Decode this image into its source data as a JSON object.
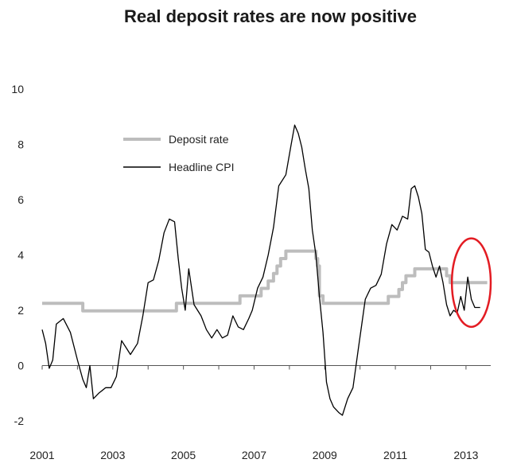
{
  "chart_data": {
    "type": "line",
    "title": "Real deposit rates are now positive",
    "xlabel": "",
    "ylabel": "",
    "xlim": [
      2001.0,
      2013.7
    ],
    "ylim": [
      -2.5,
      10.5
    ],
    "y_ticks": [
      -2,
      0,
      2,
      4,
      6,
      8,
      10
    ],
    "x_ticks": [
      2001,
      2003,
      2005,
      2007,
      2009,
      2011,
      2013
    ],
    "x_tick_labels": [
      "2001",
      "2003",
      "2005",
      "2007",
      "2009",
      "2011",
      "2013"
    ],
    "grid": false,
    "legend": {
      "position": "top-left"
    },
    "series": [
      {
        "name": "Deposit rate",
        "color": "#bdbdbd",
        "points": [
          [
            2001.0,
            2.25
          ],
          [
            2002.15,
            2.25
          ],
          [
            2002.15,
            1.98
          ],
          [
            2004.8,
            1.98
          ],
          [
            2004.8,
            2.25
          ],
          [
            2006.6,
            2.25
          ],
          [
            2006.6,
            2.52
          ],
          [
            2007.2,
            2.52
          ],
          [
            2007.2,
            2.79
          ],
          [
            2007.4,
            2.79
          ],
          [
            2007.4,
            3.06
          ],
          [
            2007.55,
            3.06
          ],
          [
            2007.55,
            3.33
          ],
          [
            2007.65,
            3.33
          ],
          [
            2007.65,
            3.6
          ],
          [
            2007.75,
            3.6
          ],
          [
            2007.75,
            3.87
          ],
          [
            2007.9,
            3.87
          ],
          [
            2007.9,
            4.14
          ],
          [
            2008.75,
            4.14
          ],
          [
            2008.75,
            3.87
          ],
          [
            2008.8,
            3.87
          ],
          [
            2008.8,
            3.6
          ],
          [
            2008.85,
            3.6
          ],
          [
            2008.85,
            2.52
          ],
          [
            2008.95,
            2.52
          ],
          [
            2008.95,
            2.25
          ],
          [
            2010.8,
            2.25
          ],
          [
            2010.8,
            2.5
          ],
          [
            2011.1,
            2.5
          ],
          [
            2011.1,
            2.75
          ],
          [
            2011.2,
            2.75
          ],
          [
            2011.2,
            3.0
          ],
          [
            2011.3,
            3.0
          ],
          [
            2011.3,
            3.25
          ],
          [
            2011.55,
            3.25
          ],
          [
            2011.55,
            3.5
          ],
          [
            2012.45,
            3.5
          ],
          [
            2012.45,
            3.25
          ],
          [
            2012.55,
            3.25
          ],
          [
            2012.55,
            3.0
          ],
          [
            2013.6,
            3.0
          ]
        ]
      },
      {
        "name": "Headline CPI",
        "color": "#000000",
        "points": [
          [
            2001.0,
            1.3
          ],
          [
            2001.1,
            0.8
          ],
          [
            2001.2,
            -0.1
          ],
          [
            2001.3,
            0.2
          ],
          [
            2001.4,
            1.5
          ],
          [
            2001.6,
            1.7
          ],
          [
            2001.8,
            1.2
          ],
          [
            2002.0,
            0.2
          ],
          [
            2002.15,
            -0.5
          ],
          [
            2002.25,
            -0.8
          ],
          [
            2002.35,
            0.0
          ],
          [
            2002.45,
            -1.2
          ],
          [
            2002.6,
            -1.0
          ],
          [
            2002.8,
            -0.8
          ],
          [
            2002.95,
            -0.8
          ],
          [
            2003.1,
            -0.4
          ],
          [
            2003.25,
            0.9
          ],
          [
            2003.4,
            0.6
          ],
          [
            2003.5,
            0.4
          ],
          [
            2003.7,
            0.8
          ],
          [
            2003.85,
            1.8
          ],
          [
            2004.0,
            3.0
          ],
          [
            2004.15,
            3.1
          ],
          [
            2004.3,
            3.8
          ],
          [
            2004.45,
            4.8
          ],
          [
            2004.6,
            5.3
          ],
          [
            2004.75,
            5.2
          ],
          [
            2004.85,
            3.9
          ],
          [
            2004.95,
            2.8
          ],
          [
            2005.05,
            2.0
          ],
          [
            2005.15,
            3.5
          ],
          [
            2005.3,
            2.2
          ],
          [
            2005.5,
            1.8
          ],
          [
            2005.65,
            1.3
          ],
          [
            2005.8,
            1.0
          ],
          [
            2005.95,
            1.3
          ],
          [
            2006.1,
            1.0
          ],
          [
            2006.25,
            1.1
          ],
          [
            2006.4,
            1.8
          ],
          [
            2006.55,
            1.4
          ],
          [
            2006.7,
            1.3
          ],
          [
            2006.85,
            1.7
          ],
          [
            2006.95,
            2.0
          ],
          [
            2007.1,
            2.8
          ],
          [
            2007.25,
            3.2
          ],
          [
            2007.4,
            4.0
          ],
          [
            2007.55,
            5.0
          ],
          [
            2007.7,
            6.5
          ],
          [
            2007.9,
            6.9
          ],
          [
            2008.05,
            8.0
          ],
          [
            2008.15,
            8.7
          ],
          [
            2008.25,
            8.4
          ],
          [
            2008.35,
            7.9
          ],
          [
            2008.45,
            7.1
          ],
          [
            2008.55,
            6.4
          ],
          [
            2008.65,
            4.9
          ],
          [
            2008.75,
            4.0
          ],
          [
            2008.85,
            2.5
          ],
          [
            2008.95,
            1.2
          ],
          [
            2009.05,
            -0.6
          ],
          [
            2009.15,
            -1.2
          ],
          [
            2009.25,
            -1.5
          ],
          [
            2009.4,
            -1.7
          ],
          [
            2009.5,
            -1.8
          ],
          [
            2009.65,
            -1.2
          ],
          [
            2009.8,
            -0.8
          ],
          [
            2009.95,
            0.6
          ],
          [
            2010.05,
            1.5
          ],
          [
            2010.15,
            2.4
          ],
          [
            2010.3,
            2.8
          ],
          [
            2010.45,
            2.9
          ],
          [
            2010.6,
            3.3
          ],
          [
            2010.75,
            4.4
          ],
          [
            2010.9,
            5.1
          ],
          [
            2011.05,
            4.9
          ],
          [
            2011.2,
            5.4
          ],
          [
            2011.35,
            5.3
          ],
          [
            2011.45,
            6.4
          ],
          [
            2011.55,
            6.5
          ],
          [
            2011.65,
            6.1
          ],
          [
            2011.75,
            5.5
          ],
          [
            2011.85,
            4.2
          ],
          [
            2011.95,
            4.1
          ],
          [
            2012.05,
            3.6
          ],
          [
            2012.15,
            3.2
          ],
          [
            2012.25,
            3.6
          ],
          [
            2012.35,
            3.0
          ],
          [
            2012.45,
            2.2
          ],
          [
            2012.55,
            1.8
          ],
          [
            2012.65,
            2.0
          ],
          [
            2012.75,
            1.9
          ],
          [
            2012.85,
            2.5
          ],
          [
            2012.95,
            2.0
          ],
          [
            2013.05,
            3.2
          ],
          [
            2013.15,
            2.4
          ],
          [
            2013.25,
            2.1
          ],
          [
            2013.4,
            2.1
          ]
        ]
      }
    ],
    "annotations": [
      {
        "type": "ellipse",
        "color": "#e31c23",
        "center": [
          2013.15,
          3.0
        ],
        "rx_years": 0.55,
        "ry_value": 1.6
      }
    ]
  }
}
